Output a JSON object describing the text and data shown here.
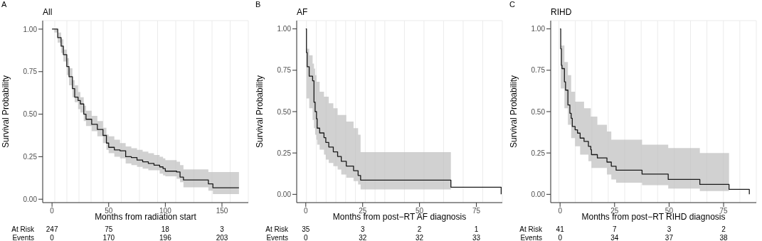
{
  "chart_data": [
    {
      "type": "step",
      "title": "All",
      "xlabel": "Months from radiation start",
      "ylabel": "Survival Probability",
      "grid": true,
      "legend": false,
      "xlim": [
        -8.25,
        173.25
      ],
      "xticks": [
        0,
        50,
        100,
        150
      ],
      "ylim": [
        -0.02,
        1.05
      ],
      "yticks": [
        {
          "value": 0,
          "label": "0.00"
        },
        {
          "value": 0.25,
          "label": "0.25"
        },
        {
          "value": 0.5,
          "label": "0.50"
        },
        {
          "value": 0.75,
          "label": "0.75"
        },
        {
          "value": 1,
          "label": "1.00"
        }
      ],
      "x": [
        0,
        2,
        5,
        8,
        10,
        13,
        15,
        18,
        20,
        23,
        25,
        28,
        30,
        35,
        40,
        45,
        48,
        50,
        55,
        60,
        65,
        70,
        75,
        80,
        85,
        90,
        95,
        98,
        100,
        110,
        113,
        116,
        138,
        142,
        165
      ],
      "series": [
        {
          "color": "#1a1a1a",
          "values": [
            1,
            1,
            0.95,
            0.9,
            0.85,
            0.78,
            0.72,
            0.65,
            0.6,
            0.58,
            0.56,
            0.5,
            0.47,
            0.44,
            0.41,
            0.375,
            0.33,
            0.305,
            0.29,
            0.285,
            0.25,
            0.245,
            0.23,
            0.22,
            0.21,
            0.2,
            0.19,
            0.18,
            0.165,
            0.16,
            0.13,
            0.113,
            0.09,
            0.067,
            0.067
          ],
          "lower": [
            1,
            0.98,
            0.92,
            0.86,
            0.81,
            0.73,
            0.67,
            0.6,
            0.57,
            0.53,
            0.51,
            0.46,
            0.43,
            0.4,
            0.37,
            0.33,
            0.29,
            0.27,
            0.25,
            0.24,
            0.21,
            0.2,
            0.19,
            0.18,
            0.17,
            0.17,
            0.15,
            0.14,
            0.135,
            0.12,
            0.1,
            0.07,
            0.05,
            0.03,
            0.03
          ],
          "upper": [
            1,
            1,
            0.98,
            0.94,
            0.88,
            0.83,
            0.77,
            0.7,
            0.67,
            0.63,
            0.6,
            0.55,
            0.52,
            0.49,
            0.46,
            0.42,
            0.38,
            0.37,
            0.35,
            0.33,
            0.31,
            0.3,
            0.29,
            0.28,
            0.27,
            0.26,
            0.25,
            0.24,
            0.23,
            0.22,
            0.2,
            0.175,
            0.16,
            0.16,
            0.16
          ]
        }
      ],
      "annotations": [
        "A",
        "At Risk",
        "247",
        "75",
        "18",
        "3",
        "Events",
        "0",
        "170",
        "196",
        "203"
      ]
    },
    {
      "type": "step",
      "title": "AF",
      "xlabel": "Months from post−RT AF diagnosis",
      "ylabel": "Survival Probability",
      "grid": true,
      "legend": false,
      "xlim": [
        -4,
        86.4
      ],
      "xticks": [
        0,
        25,
        50,
        75
      ],
      "ylim": [
        -0.05,
        1.05
      ],
      "yticks": [
        {
          "value": 0,
          "label": "0.00"
        },
        {
          "value": 0.25,
          "label": "0.25"
        },
        {
          "value": 0.5,
          "label": "0.50"
        },
        {
          "value": 0.75,
          "label": "0.75"
        },
        {
          "value": 1,
          "label": "1.00"
        }
      ],
      "x": [
        0,
        0.3,
        0.6,
        1.5,
        3.0,
        3.6,
        4.1,
        4.7,
        5.0,
        6.1,
        8.0,
        8.8,
        10.1,
        12.1,
        14.0,
        15.6,
        17.8,
        21.0,
        23.0,
        24.1,
        63.8,
        85.9
      ],
      "series": [
        {
          "color": "#1a1a1a",
          "values": [
            1,
            0.857,
            0.771,
            0.714,
            0.686,
            0.557,
            0.5,
            0.457,
            0.4,
            0.371,
            0.343,
            0.314,
            0.286,
            0.257,
            0.229,
            0.2,
            0.171,
            0.143,
            0.114,
            0.086,
            0.043,
            0
          ],
          "lower": [
            1,
            0.58,
            0.58,
            0.52,
            0.45,
            0.4,
            0.36,
            0.33,
            0.3,
            0.27,
            0.24,
            0.21,
            0.19,
            0.17,
            0.15,
            0.12,
            0.1,
            0.08,
            0.06,
            0.03,
            0.03,
            null
          ],
          "upper": [
            1,
            0.88,
            0.88,
            0.84,
            0.79,
            0.76,
            0.72,
            0.68,
            0.68,
            0.62,
            0.59,
            0.59,
            0.55,
            0.52,
            0.48,
            0.48,
            0.44,
            0.4,
            0.36,
            0.255,
            0.255,
            null
          ]
        }
      ],
      "annotations": [
        "B",
        "At Risk",
        "35",
        "3",
        "2",
        "1",
        "Events",
        "0",
        "32",
        "32",
        "33"
      ]
    },
    {
      "type": "step",
      "title": "RIHD",
      "xlabel": "Months from post−RT RIHD diagnosis",
      "ylabel": "Survival Probability",
      "grid": true,
      "legend": false,
      "xlim": [
        -4.3,
        90
      ],
      "xticks": [
        0,
        25,
        50,
        75
      ],
      "ylim": [
        -0.05,
        1.05
      ],
      "yticks": [
        {
          "value": 0,
          "label": "0.00"
        },
        {
          "value": 0.25,
          "label": "0.25"
        },
        {
          "value": 0.5,
          "label": "0.50"
        },
        {
          "value": 0.75,
          "label": "0.75"
        },
        {
          "value": 1,
          "label": "1.00"
        }
      ],
      "x": [
        0,
        0.3,
        0.6,
        0.9,
        2.0,
        2.5,
        3.6,
        4.5,
        5.1,
        5.6,
        6.9,
        8.0,
        9.2,
        11.0,
        13.0,
        14.1,
        14.4,
        17.1,
        21.5,
        23.5,
        25.7,
        37.6,
        49.6,
        64.1,
        77.5,
        86.8
      ],
      "series": [
        {
          "color": "#1a1a1a",
          "values": [
            1,
            0.88,
            0.78,
            0.76,
            0.68,
            0.63,
            0.54,
            0.49,
            0.46,
            0.41,
            0.39,
            0.37,
            0.34,
            0.32,
            0.29,
            0.27,
            0.24,
            0.22,
            0.195,
            0.17,
            0.146,
            0.122,
            0.09,
            0.06,
            0.03,
            0
          ],
          "lower": [
            1,
            0.64,
            0.64,
            0.64,
            0.52,
            0.52,
            0.42,
            0.42,
            0.34,
            0.34,
            0.29,
            0.29,
            0.24,
            0.24,
            0.2,
            0.2,
            0.16,
            0.16,
            0.12,
            0.09,
            0.07,
            0.055,
            0.035,
            0.02,
            0.02,
            null
          ],
          "upper": [
            1,
            0.9,
            0.9,
            0.9,
            0.8,
            0.8,
            0.72,
            0.72,
            0.62,
            0.62,
            0.56,
            0.56,
            0.56,
            0.52,
            0.52,
            0.47,
            0.47,
            0.42,
            0.38,
            0.33,
            0.33,
            0.3,
            0.28,
            0.25,
            0.22,
            null
          ]
        }
      ],
      "annotations": [
        "C",
        "At Risk",
        "41",
        "7",
        "3",
        "2",
        "Events",
        "0",
        "34",
        "37",
        "38"
      ]
    }
  ]
}
